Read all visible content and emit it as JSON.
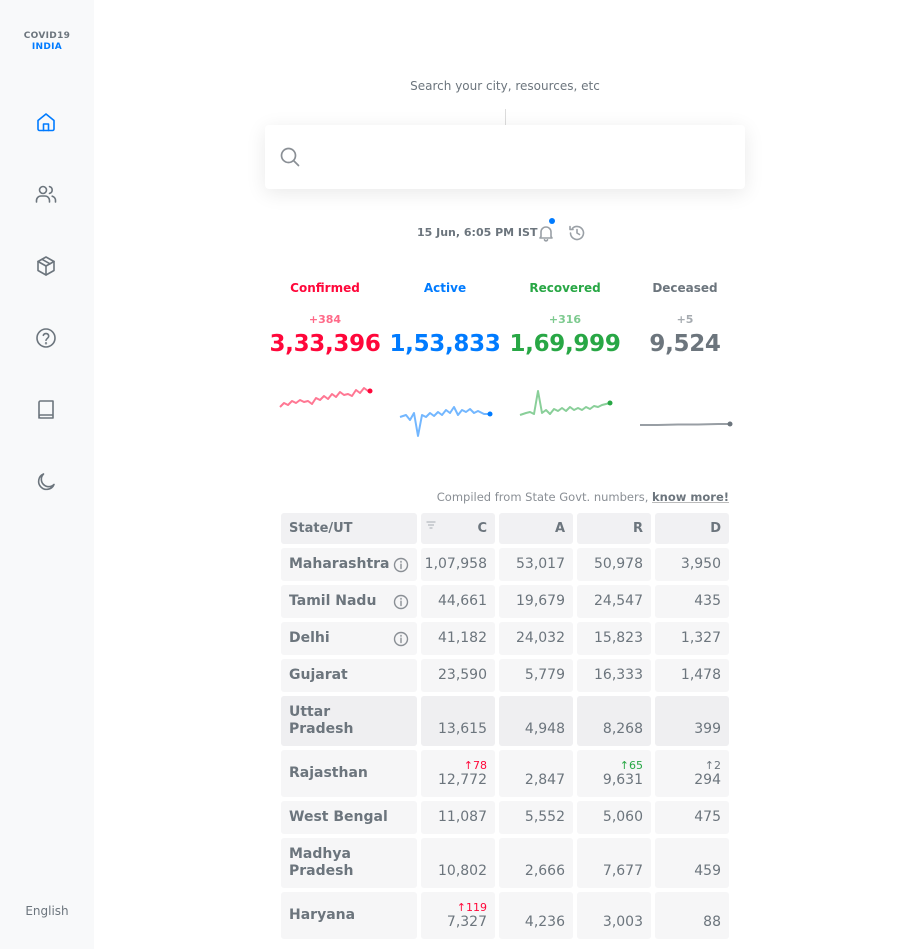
{
  "brand": {
    "line1": "COVID19",
    "line2": "INDIA"
  },
  "sidebar": {
    "items": [
      {
        "name": "home-icon",
        "active": true
      },
      {
        "name": "users-icon",
        "active": false
      },
      {
        "name": "box-icon",
        "active": false
      },
      {
        "name": "help-icon",
        "active": false
      },
      {
        "name": "book-icon",
        "active": false
      },
      {
        "name": "moon-icon",
        "active": false
      }
    ],
    "language": "English"
  },
  "search": {
    "hint": "Search your city, resources, etc",
    "value": "",
    "placeholder": ""
  },
  "timestamp": "15 Jun, 6:05 PM IST",
  "level": [
    {
      "label": "Confirmed",
      "delta": "+384",
      "total": "3,33,396",
      "color": "#ff073a",
      "spark_color": "#ff073a"
    },
    {
      "label": "Active",
      "delta": "",
      "total": "1,53,833",
      "color": "#007bff",
      "spark_color": "#007bff"
    },
    {
      "label": "Recovered",
      "delta": "+316",
      "total": "1,69,999",
      "color": "#28a745",
      "spark_color": "#28a745"
    },
    {
      "label": "Deceased",
      "delta": "+5",
      "total": "9,524",
      "color": "#6c757d",
      "spark_color": "#6c757d"
    }
  ],
  "compiled": {
    "text": "Compiled from State Govt. numbers,",
    "link": "know more!"
  },
  "table": {
    "headers": {
      "state": "State/UT",
      "c": "C",
      "a": "A",
      "r": "R",
      "d": "D"
    },
    "rows": [
      {
        "line1": "Maharashtra",
        "line2": "",
        "info": true,
        "c": "1,07,958",
        "a": "53,017",
        "r": "50,978",
        "d": "3,950",
        "dc": "",
        "dr": "",
        "dd": ""
      },
      {
        "line1": "Tamil Nadu",
        "line2": "",
        "info": true,
        "c": "44,661",
        "a": "19,679",
        "r": "24,547",
        "d": "435",
        "dc": "",
        "dr": "",
        "dd": ""
      },
      {
        "line1": "Delhi",
        "line2": "",
        "info": true,
        "c": "41,182",
        "a": "24,032",
        "r": "15,823",
        "d": "1,327",
        "dc": "",
        "dr": "",
        "dd": ""
      },
      {
        "line1": "Gujarat",
        "line2": "",
        "info": false,
        "c": "23,590",
        "a": "5,779",
        "r": "16,333",
        "d": "1,478",
        "dc": "",
        "dr": "",
        "dd": ""
      },
      {
        "line1": "Uttar",
        "line2": "Pradesh",
        "info": false,
        "c": "13,615",
        "a": "4,948",
        "r": "8,268",
        "d": "399",
        "dc": "",
        "dr": "",
        "dd": ""
      },
      {
        "line1": "Rajasthan",
        "line2": "",
        "info": false,
        "c": "12,772",
        "a": "2,847",
        "r": "9,631",
        "d": "294",
        "dc": "↑78",
        "dr": "↑65",
        "dd": "↑2"
      },
      {
        "line1": "West Bengal",
        "line2": "",
        "info": false,
        "c": "11,087",
        "a": "5,552",
        "r": "5,060",
        "d": "475",
        "dc": "",
        "dr": "",
        "dd": ""
      },
      {
        "line1": "Madhya",
        "line2": "Pradesh",
        "info": false,
        "c": "10,802",
        "a": "2,666",
        "r": "7,677",
        "d": "459",
        "dc": "",
        "dr": "",
        "dd": ""
      },
      {
        "line1": "Haryana",
        "line2": "",
        "info": false,
        "c": "7,327",
        "a": "4,236",
        "r": "3,003",
        "d": "88",
        "dc": "↑119",
        "dr": "",
        "dd": ""
      }
    ]
  }
}
